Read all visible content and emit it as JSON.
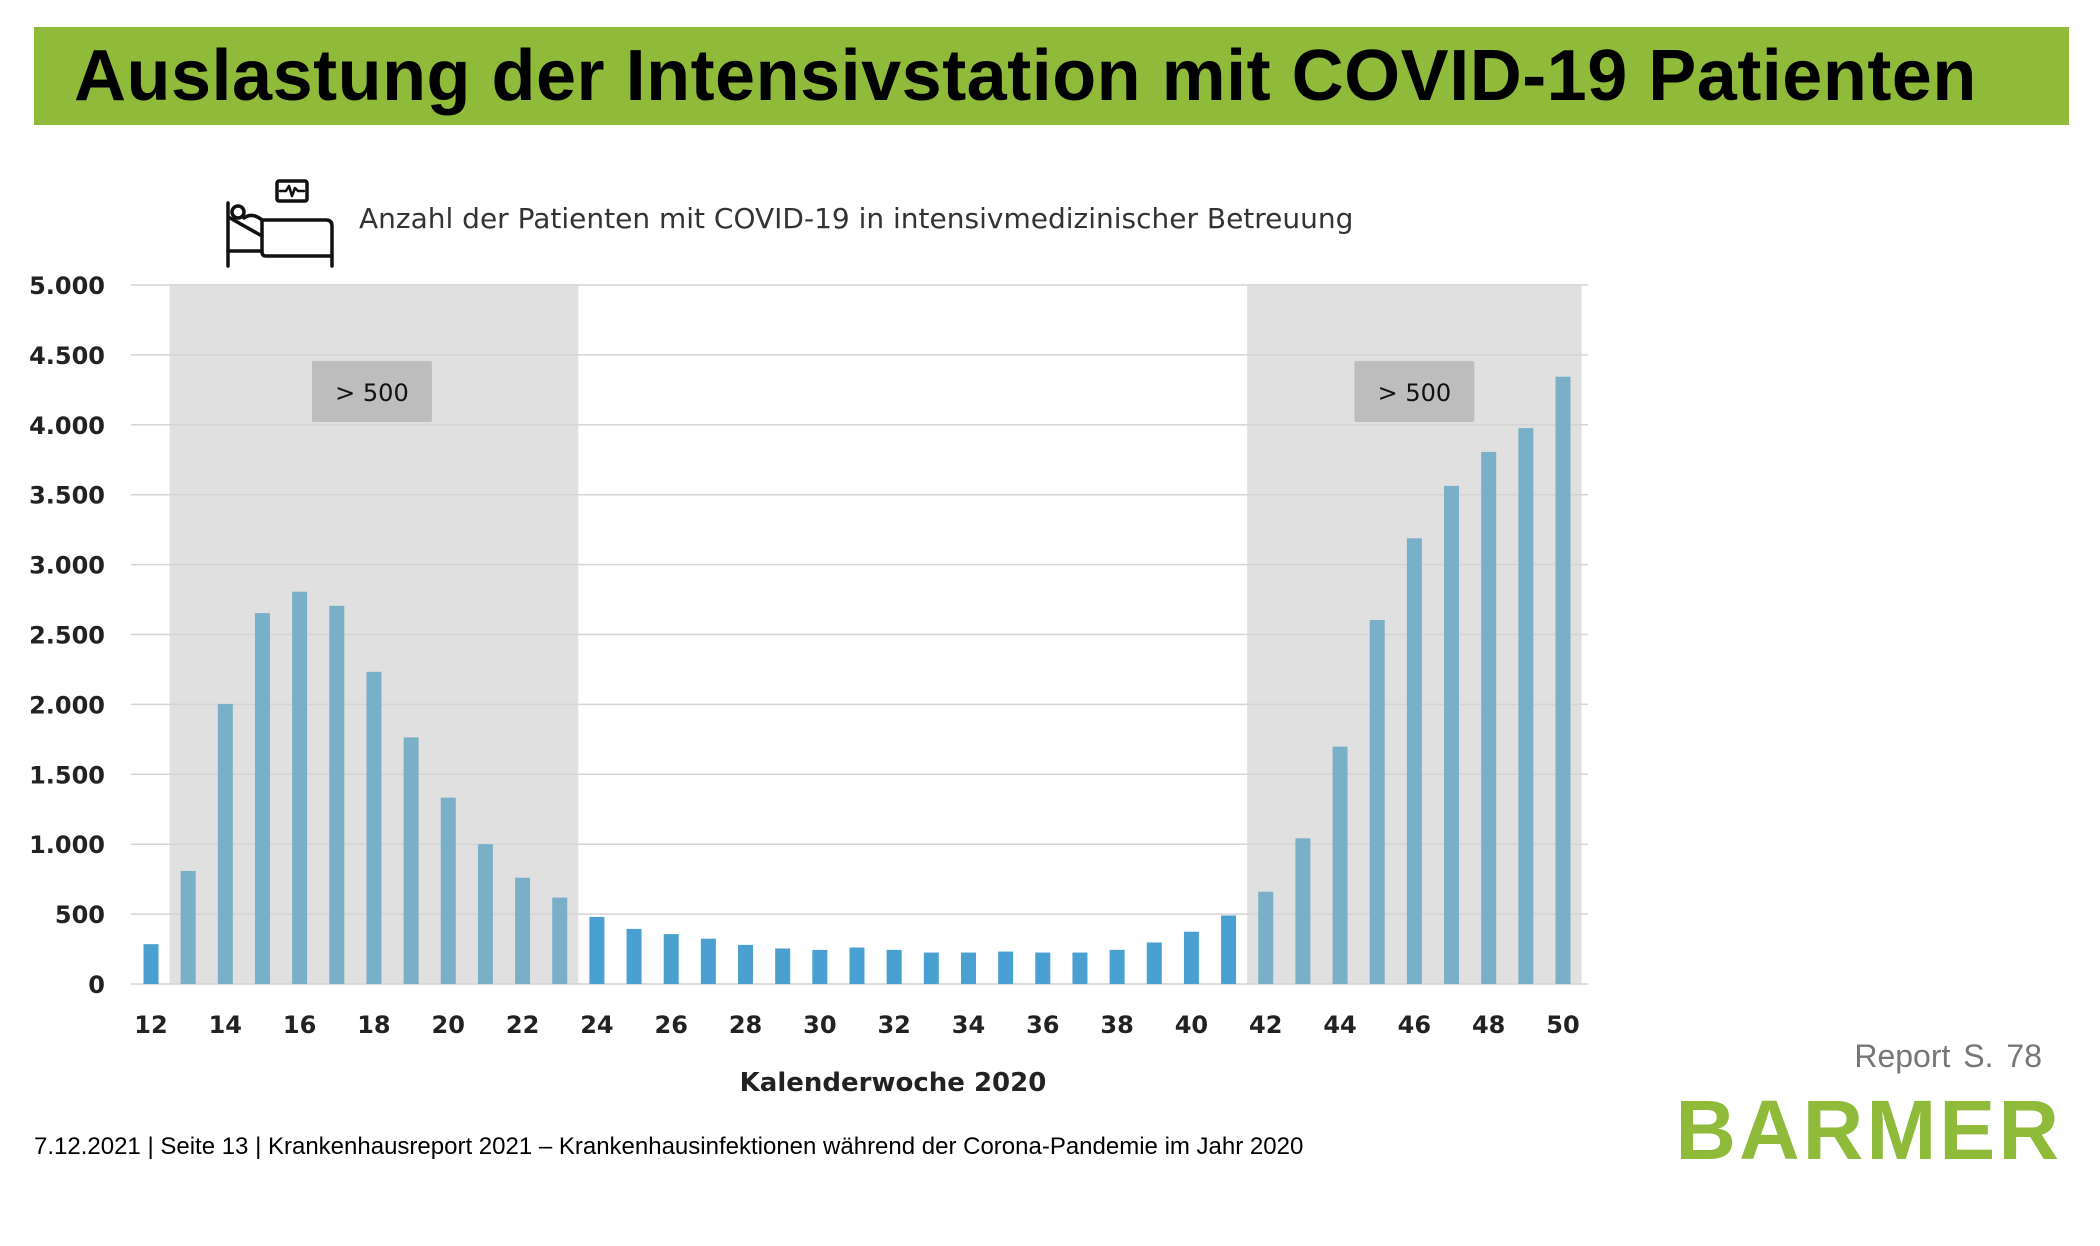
{
  "slide": {
    "title": "Auslastung der Intensivstation mit COVID-19 Patienten",
    "footer": "7.12.2021 | Seite 13 | Krankenhausreport 2021 – Krankenhausinfektionen während der Corona-Pandemie im Jahr 2020",
    "report_ref": "Report  S. 78",
    "logo": "BARMER",
    "icon": "hospital-bed-monitor-icon",
    "colors": {
      "banner": "#8fba3a",
      "logo": "#8fba3a",
      "bar_shaded": "#7aafc8",
      "bar_normal": "#4aa0d0",
      "shade": "#e0e0e0",
      "badge": "#bdbdbd"
    }
  },
  "chart_data": {
    "type": "bar",
    "title": "Anzahl der Patienten mit COVID-19 in intensivmedizinischer Betreuung",
    "xlabel": "Kalenderwoche 2020",
    "ylabel": "",
    "ylim": [
      0,
      5000
    ],
    "grid": true,
    "yticks": [
      0,
      500,
      1000,
      1500,
      2000,
      2500,
      3000,
      3500,
      4000,
      4500,
      5000
    ],
    "ytick_labels": [
      "0",
      "500",
      "1.000",
      "1.500",
      "2.000",
      "2.500",
      "3.000",
      "3.500",
      "4.000",
      "4.500",
      "5.000"
    ],
    "xtick_labels": [
      "12",
      "14",
      "16",
      "18",
      "20",
      "22",
      "24",
      "26",
      "28",
      "30",
      "32",
      "34",
      "36",
      "38",
      "40",
      "42",
      "44",
      "46",
      "48",
      "50"
    ],
    "categories": [
      12,
      13,
      14,
      15,
      16,
      17,
      18,
      19,
      20,
      21,
      22,
      23,
      24,
      25,
      26,
      27,
      28,
      29,
      30,
      31,
      32,
      33,
      34,
      35,
      36,
      37,
      38,
      39,
      40,
      41,
      42,
      43,
      44,
      45,
      46,
      47,
      48,
      49,
      50
    ],
    "values": [
      285,
      809,
      2003,
      2653,
      2806,
      2705,
      2233,
      1764,
      1333,
      1000,
      760,
      618,
      480,
      394,
      357,
      324,
      280,
      254,
      244,
      261,
      244,
      225,
      225,
      232,
      225,
      225,
      244,
      297,
      374,
      490,
      660,
      1042,
      1698,
      2604,
      3188,
      3563,
      3806,
      3976,
      4344
    ],
    "shaded_ranges": [
      {
        "from_week": 13,
        "to_week": 23,
        "label": "> 500"
      },
      {
        "from_week": 42,
        "to_week": 50,
        "label": "> 500"
      }
    ]
  }
}
